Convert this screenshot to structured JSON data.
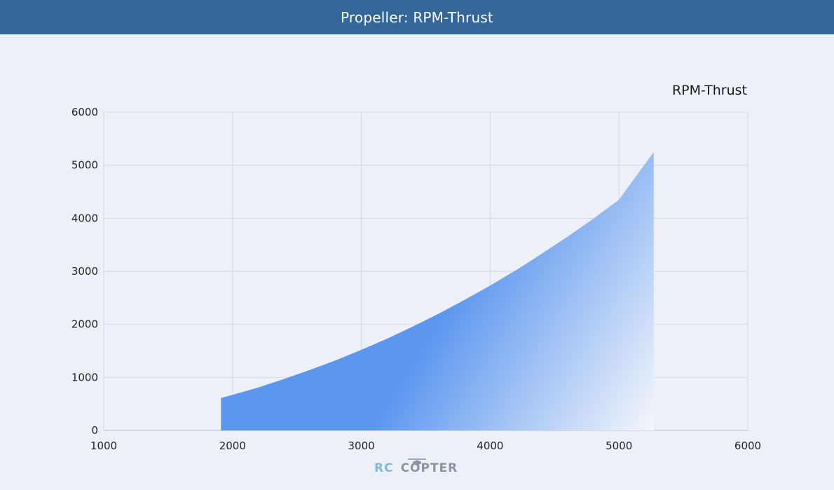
{
  "header": {
    "title": "Propeller: RPM-Thrust"
  },
  "watermark": {
    "part1": "RC",
    "part2": "COPTER"
  },
  "colors": {
    "header_bg": "#336699",
    "fill_top": "#5b96ef",
    "fill_bottom": "#f3f6fb"
  },
  "chart_data": {
    "type": "area",
    "title": "RPM-Thrust",
    "xlabel": "",
    "ylabel": "",
    "xlim": [
      1000,
      6000
    ],
    "ylim": [
      0,
      6000
    ],
    "xticks": [
      1000,
      2000,
      3000,
      4000,
      5000,
      6000
    ],
    "yticks": [
      0,
      1000,
      2000,
      3000,
      4000,
      5000,
      6000
    ],
    "grid": true,
    "series": [
      {
        "x": [
          1910,
          2000,
          2200,
          2400,
          2600,
          2800,
          3000,
          3200,
          3400,
          3600,
          3800,
          4000,
          4200,
          4400,
          4600,
          4800,
          5000,
          5270
        ],
        "y": [
          610,
          670,
          810,
          970,
          1140,
          1320,
          1520,
          1730,
          1960,
          2200,
          2460,
          2730,
          3020,
          3330,
          3650,
          3990,
          4350,
          5250
        ]
      }
    ]
  }
}
